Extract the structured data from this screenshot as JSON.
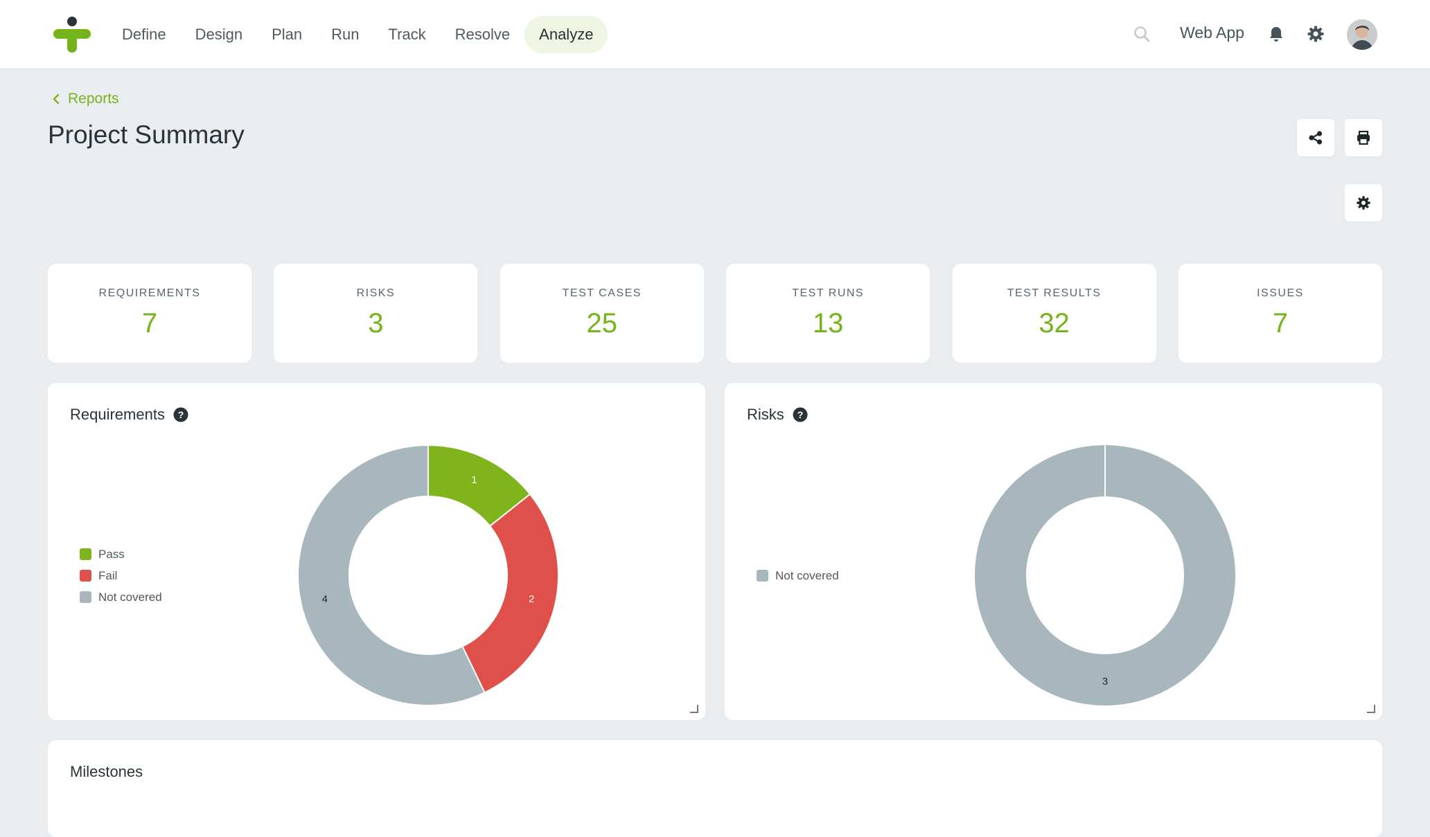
{
  "nav": {
    "items": [
      "Define",
      "Design",
      "Plan",
      "Run",
      "Track",
      "Resolve",
      "Analyze"
    ],
    "active_index": 6,
    "app_name": "Web App"
  },
  "icons": {
    "logo": "tricentis-cross-logo",
    "search": "search-icon",
    "bell": "bell-icon",
    "settings": "gear-icon",
    "share": "share-icon",
    "print": "printer-icon",
    "back": "chevron-left-icon",
    "help": "question-circle-icon"
  },
  "header": {
    "back_label": "Reports",
    "title": "Project Summary"
  },
  "stats": [
    {
      "label": "REQUIREMENTS",
      "value": "7"
    },
    {
      "label": "RISKS",
      "value": "3"
    },
    {
      "label": "TEST CASES",
      "value": "25"
    },
    {
      "label": "TEST RUNS",
      "value": "13"
    },
    {
      "label": "TEST RESULTS",
      "value": "32"
    },
    {
      "label": "ISSUES",
      "value": "7"
    }
  ],
  "colors": {
    "accent": "#74b31a",
    "pass": "#80b41d",
    "fail": "#df504a",
    "not_covered": "#a8b6bd"
  },
  "panels": {
    "requirements_title": "Requirements",
    "risks_title": "Risks",
    "milestones_title": "Milestones"
  },
  "chart_data": [
    {
      "type": "pie",
      "variant": "donut",
      "title": "Requirements",
      "legend_position": "left",
      "series": [
        {
          "name": "Pass",
          "value": 1,
          "color": "#80b41d"
        },
        {
          "name": "Fail",
          "value": 2,
          "color": "#df504a"
        },
        {
          "name": "Not covered",
          "value": 4,
          "color": "#a8b6bd"
        }
      ]
    },
    {
      "type": "pie",
      "variant": "donut",
      "title": "Risks",
      "legend_position": "left",
      "series": [
        {
          "name": "Not covered",
          "value": 3,
          "color": "#a8b6bd"
        }
      ]
    }
  ]
}
